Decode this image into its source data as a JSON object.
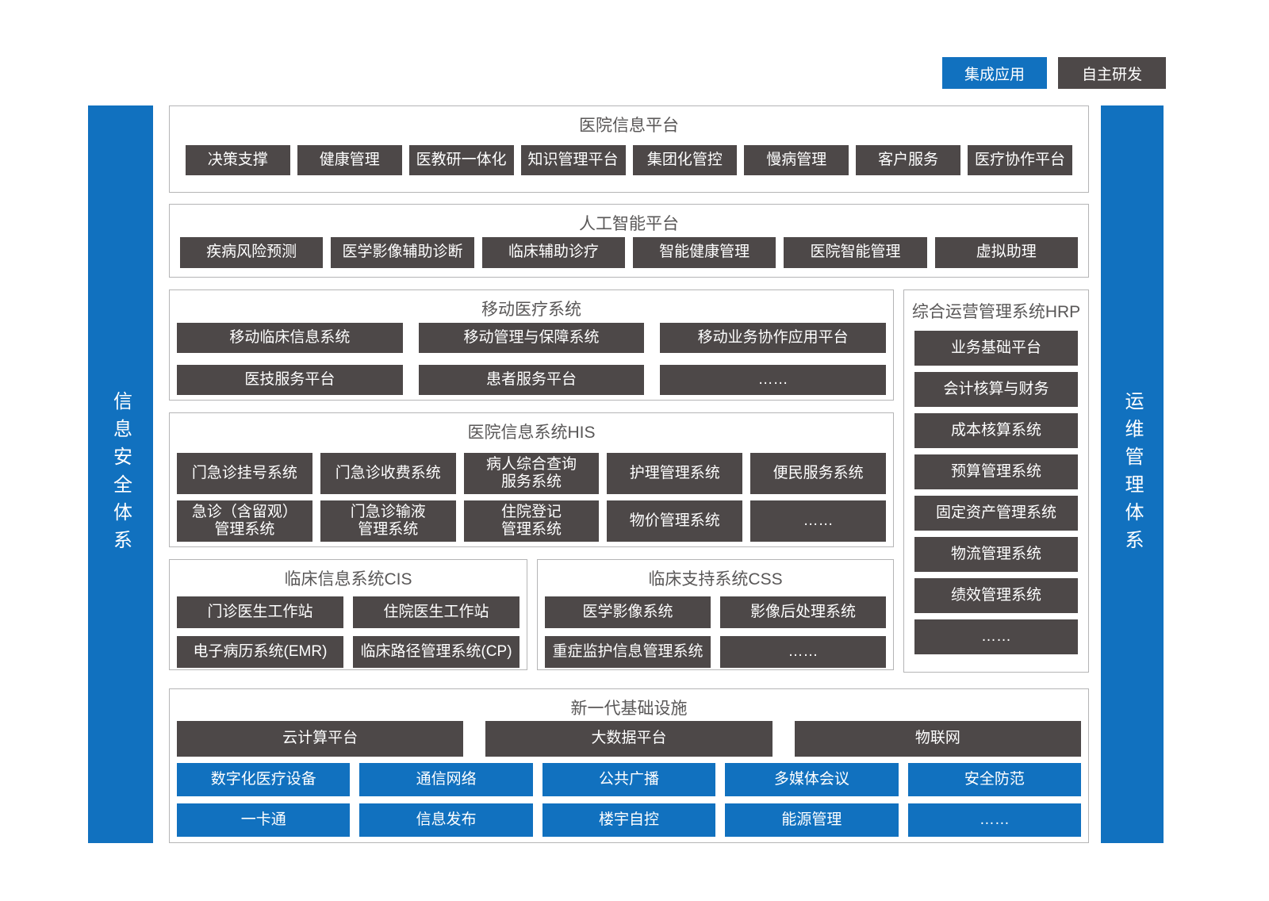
{
  "colors": {
    "blue": "#1171bf",
    "dark": "#4d4848",
    "border": "#b5b5b6",
    "title": "#595757"
  },
  "legend": {
    "integrated": "集成应用",
    "self_developed": "自主研发"
  },
  "side_bars": {
    "left": "信息安全体系",
    "right": "运维管理体系"
  },
  "sections": {
    "platform": {
      "title": "医院信息平台",
      "items": [
        "决策支撑",
        "健康管理",
        "医教研一体化",
        "知识管理平台",
        "集团化管控",
        "慢病管理",
        "客户服务",
        "医疗协作平台"
      ]
    },
    "ai": {
      "title": "人工智能平台",
      "items": [
        "疾病风险预测",
        "医学影像辅助诊断",
        "临床辅助诊疗",
        "智能健康管理",
        "医院智能管理",
        "虚拟助理"
      ]
    },
    "mobile": {
      "title": "移动医疗系统",
      "rows": [
        [
          "移动临床信息系统",
          "移动管理与保障系统",
          "移动业务协作应用平台"
        ],
        [
          "医技服务平台",
          "患者服务平台",
          "……"
        ]
      ]
    },
    "hrp": {
      "title": "综合运营管理系统HRP",
      "items": [
        "业务基础平台",
        "会计核算与财务",
        "成本核算系统",
        "预算管理系统",
        "固定资产管理系统",
        "物流管理系统",
        "绩效管理系统",
        "……"
      ]
    },
    "his": {
      "title": "医院信息系统HIS",
      "rows": [
        [
          "门急诊挂号系统",
          "门急诊收费系统",
          "病人综合查询\n服务系统",
          "护理管理系统",
          "便民服务系统"
        ],
        [
          "急诊（含留观）\n管理系统",
          "门急诊输液\n管理系统",
          "住院登记\n管理系统",
          "物价管理系统",
          "……"
        ]
      ]
    },
    "cis": {
      "title": "临床信息系统CIS",
      "rows": [
        [
          "门诊医生工作站",
          "住院医生工作站"
        ],
        [
          "电子病历系统(EMR)",
          "临床路径管理系统(CP)"
        ]
      ]
    },
    "css": {
      "title": "临床支持系统CSS",
      "rows": [
        [
          "医学影像系统",
          "影像后处理系统"
        ],
        [
          "重症监护信息管理系统",
          "……"
        ]
      ]
    },
    "infra": {
      "title": "新一代基础设施",
      "dark_row": [
        "云计算平台",
        "大数据平台",
        "物联网"
      ],
      "blue_rows": [
        [
          "数字化医疗设备",
          "通信网络",
          "公共广播",
          "多媒体会议",
          "安全防范"
        ],
        [
          "一卡通",
          "信息发布",
          "楼宇自控",
          "能源管理",
          "……"
        ]
      ]
    }
  }
}
